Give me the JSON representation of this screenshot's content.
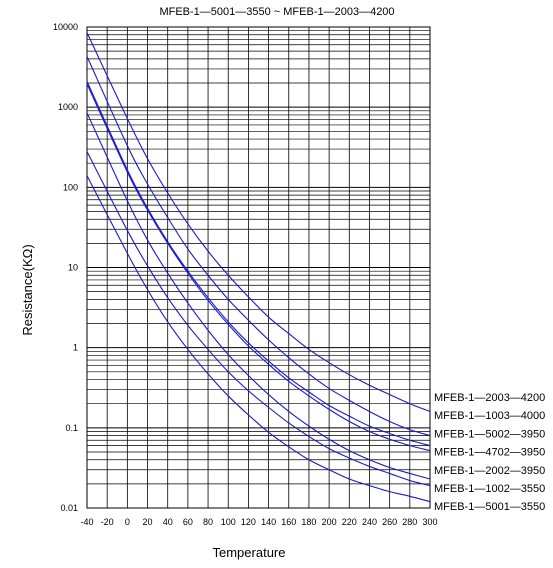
{
  "chart_data": {
    "type": "line",
    "title": "MFEB-1—5001—3550 ~ MFEB-1—2003—4200",
    "xlabel": "Temperature",
    "ylabel": "Resistance(KΩ)",
    "xlim": [
      -40,
      300
    ],
    "ylim": [
      0.01,
      10000
    ],
    "yscale": "log",
    "grid": true,
    "legend_position": "right",
    "xticks": [
      "-40",
      "-20",
      "0",
      "20",
      "40",
      "60",
      "80",
      "100",
      "120",
      "140",
      "160",
      "180",
      "200",
      "220",
      "240",
      "260",
      "280",
      "300"
    ],
    "yticks": [
      {
        "value": 10000,
        "label": "10000"
      },
      {
        "value": 1000,
        "label": "1000"
      },
      {
        "value": 100,
        "label": "100"
      },
      {
        "value": 10,
        "label": "10"
      },
      {
        "value": 1,
        "label": "1"
      },
      {
        "value": 0.1,
        "label": "0.1"
      },
      {
        "value": 0.01,
        "label": "0.01"
      }
    ],
    "line_color": "#1a1acc",
    "grid_color": "#000000",
    "x": [
      -40,
      0,
      20,
      40,
      60,
      80,
      100,
      120,
      140,
      160,
      180,
      200,
      220,
      240,
      260,
      280,
      300
    ],
    "series": [
      {
        "name": "MFEB-1—2003—4200",
        "values": [
          8500,
          720,
          228,
          85,
          35,
          16,
          8,
          4.3,
          2.4,
          1.5,
          0.95,
          0.65,
          0.46,
          0.34,
          0.26,
          0.2,
          0.16
        ]
      },
      {
        "name": "MFEB-1—1003—4000",
        "values": [
          4300,
          330,
          110,
          42,
          17,
          8,
          4,
          2.2,
          1.25,
          0.75,
          0.47,
          0.31,
          0.22,
          0.16,
          0.12,
          0.095,
          0.08
        ]
      },
      {
        "name": "MFEB-1—5002—3950",
        "values": [
          2100,
          165,
          55,
          21,
          9,
          4.2,
          2.1,
          1.15,
          0.68,
          0.42,
          0.28,
          0.19,
          0.14,
          0.105,
          0.085,
          0.07,
          0.06
        ]
      },
      {
        "name": "MFEB-1—4702—3950",
        "values": [
          1950,
          155,
          52,
          20,
          8.5,
          3.9,
          1.95,
          1.05,
          0.62,
          0.38,
          0.25,
          0.17,
          0.12,
          0.09,
          0.072,
          0.06,
          0.052
        ]
      },
      {
        "name": "MFEB-1—2002—3950",
        "values": [
          850,
          68,
          22,
          8.5,
          3.6,
          1.65,
          0.82,
          0.45,
          0.26,
          0.16,
          0.105,
          0.072,
          0.052,
          0.04,
          0.032,
          0.027,
          0.023
        ]
      },
      {
        "name": "MFEB-1—1002—3550",
        "values": [
          280,
          29,
          10.5,
          4.2,
          1.9,
          0.95,
          0.5,
          0.29,
          0.18,
          0.115,
          0.078,
          0.055,
          0.042,
          0.033,
          0.027,
          0.022,
          0.019
        ]
      },
      {
        "name": "MFEB-1—5001—3550",
        "values": [
          140,
          15,
          5.3,
          2.1,
          0.95,
          0.47,
          0.25,
          0.145,
          0.088,
          0.058,
          0.04,
          0.03,
          0.023,
          0.019,
          0.016,
          0.014,
          0.012
        ]
      }
    ]
  }
}
